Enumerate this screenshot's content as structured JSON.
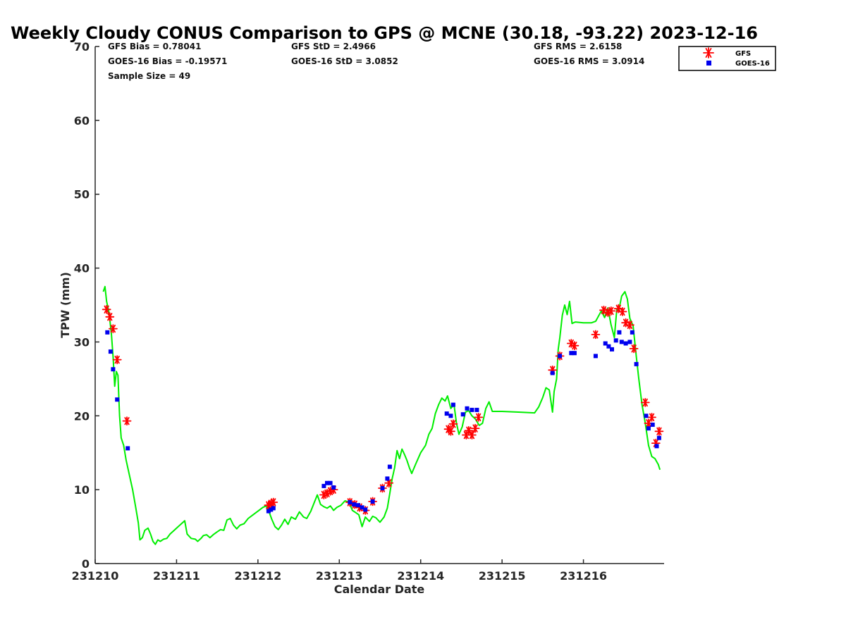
{
  "chart_data": {
    "type": "scatter",
    "title": "Weekly Cloudy CONUS Comparison to GPS @ MCNE (30.18, -93.22) 2023-12-16",
    "xlabel": "Calendar Date",
    "ylabel": "TPW (mm)",
    "xlim": [
      231210,
      231217
    ],
    "ylim": [
      0,
      70
    ],
    "x_ticks": [
      "231210",
      "231211",
      "231212",
      "231213",
      "231214",
      "231215",
      "231216"
    ],
    "y_ticks": [
      0,
      10,
      20,
      30,
      40,
      50,
      60,
      70
    ],
    "grid": false,
    "legend_position": "top-right",
    "stats": {
      "gfs_bias": "GFS Bias = 0.78041",
      "goes_bias": "GOES-16 Bias = -0.19571",
      "sample_size": "Sample Size = 49",
      "gfs_std": "GFS StD = 2.4966",
      "goes_std": "GOES-16 StD = 3.0852",
      "gfs_rms": "GFS RMS = 2.6158",
      "goes_rms": "GOES-16 RMS = 3.0914"
    },
    "series": [
      {
        "name": "GPS",
        "kind": "line",
        "color": "#00ee00",
        "points": [
          [
            231210.1,
            36.8
          ],
          [
            231210.12,
            37.5
          ],
          [
            231210.14,
            35.5
          ],
          [
            231210.17,
            34.0
          ],
          [
            231210.2,
            31.0
          ],
          [
            231210.22,
            28.0
          ],
          [
            231210.24,
            24.0
          ],
          [
            231210.26,
            26.0
          ],
          [
            231210.28,
            25.5
          ],
          [
            231210.3,
            20.0
          ],
          [
            231210.32,
            17.0
          ],
          [
            231210.35,
            16.0
          ],
          [
            231210.38,
            14.0
          ],
          [
            231210.42,
            12.0
          ],
          [
            231210.46,
            10.0
          ],
          [
            231210.5,
            7.5
          ],
          [
            231210.53,
            5.5
          ],
          [
            231210.55,
            3.2
          ],
          [
            231210.58,
            3.5
          ],
          [
            231210.61,
            4.5
          ],
          [
            231210.65,
            4.8
          ],
          [
            231210.68,
            4.0
          ],
          [
            231210.71,
            3.0
          ],
          [
            231210.74,
            2.6
          ],
          [
            231210.77,
            3.2
          ],
          [
            231210.8,
            3.0
          ],
          [
            231210.84,
            3.3
          ],
          [
            231210.88,
            3.4
          ],
          [
            231210.92,
            4.0
          ],
          [
            231211.0,
            4.8
          ],
          [
            231211.06,
            5.4
          ],
          [
            231211.1,
            5.8
          ],
          [
            231211.13,
            4.0
          ],
          [
            231211.18,
            3.4
          ],
          [
            231211.23,
            3.3
          ],
          [
            231211.26,
            3.0
          ],
          [
            231211.3,
            3.4
          ],
          [
            231211.33,
            3.8
          ],
          [
            231211.37,
            3.9
          ],
          [
            231211.41,
            3.5
          ],
          [
            231211.45,
            3.9
          ],
          [
            231211.5,
            4.3
          ],
          [
            231211.54,
            4.6
          ],
          [
            231211.58,
            4.5
          ],
          [
            231211.62,
            5.9
          ],
          [
            231211.66,
            6.1
          ],
          [
            231211.7,
            5.2
          ],
          [
            231211.74,
            4.7
          ],
          [
            231211.78,
            5.2
          ],
          [
            231211.83,
            5.4
          ],
          [
            231211.88,
            6.1
          ],
          [
            231211.94,
            6.6
          ],
          [
            231212.0,
            7.1
          ],
          [
            231212.06,
            7.6
          ],
          [
            231212.1,
            7.8
          ],
          [
            231212.13,
            7.2
          ],
          [
            231212.17,
            6.0
          ],
          [
            231212.21,
            5.0
          ],
          [
            231212.25,
            4.6
          ],
          [
            231212.29,
            5.2
          ],
          [
            231212.33,
            6.0
          ],
          [
            231212.37,
            5.3
          ],
          [
            231212.41,
            6.3
          ],
          [
            231212.46,
            6.0
          ],
          [
            231212.51,
            7.0
          ],
          [
            231212.56,
            6.3
          ],
          [
            231212.6,
            6.1
          ],
          [
            231212.65,
            7.1
          ],
          [
            231212.69,
            8.2
          ],
          [
            231212.73,
            9.3
          ],
          [
            231212.77,
            8.0
          ],
          [
            231212.81,
            7.7
          ],
          [
            231212.85,
            7.5
          ],
          [
            231212.89,
            7.8
          ],
          [
            231212.93,
            7.2
          ],
          [
            231212.97,
            7.6
          ],
          [
            231213.02,
            7.9
          ],
          [
            231213.07,
            8.5
          ],
          [
            231213.12,
            8.3
          ],
          [
            231213.16,
            7.2
          ],
          [
            231213.2,
            6.9
          ],
          [
            231213.24,
            6.6
          ],
          [
            231213.28,
            5.0
          ],
          [
            231213.32,
            6.3
          ],
          [
            231213.37,
            5.7
          ],
          [
            231213.41,
            6.4
          ],
          [
            231213.45,
            6.2
          ],
          [
            231213.5,
            5.6
          ],
          [
            231213.55,
            6.3
          ],
          [
            231213.59,
            7.5
          ],
          [
            231213.62,
            9.5
          ],
          [
            231213.65,
            11.5
          ],
          [
            231213.68,
            13.0
          ],
          [
            231213.71,
            15.3
          ],
          [
            231213.74,
            14.2
          ],
          [
            231213.77,
            15.5
          ],
          [
            231213.8,
            14.8
          ],
          [
            231213.83,
            14.0
          ],
          [
            231213.86,
            13.0
          ],
          [
            231213.89,
            12.2
          ],
          [
            231213.94,
            13.5
          ],
          [
            231214.0,
            15.0
          ],
          [
            231214.06,
            16.0
          ],
          [
            231214.1,
            17.5
          ],
          [
            231214.14,
            18.3
          ],
          [
            231214.18,
            20.3
          ],
          [
            231214.22,
            21.5
          ],
          [
            231214.26,
            22.4
          ],
          [
            231214.3,
            22.0
          ],
          [
            231214.33,
            22.7
          ],
          [
            231214.37,
            21.0
          ],
          [
            231214.41,
            21.5
          ],
          [
            231214.44,
            19.0
          ],
          [
            231214.47,
            17.5
          ],
          [
            231214.51,
            18.5
          ],
          [
            231214.55,
            20.5
          ],
          [
            231214.59,
            20.7
          ],
          [
            231214.63,
            20.0
          ],
          [
            231214.67,
            19.6
          ],
          [
            231214.72,
            18.7
          ],
          [
            231214.76,
            19.0
          ],
          [
            231214.8,
            21.0
          ],
          [
            231214.84,
            21.9
          ],
          [
            231214.88,
            20.6
          ],
          [
            231215.0,
            20.6
          ],
          [
            231215.2,
            20.5
          ],
          [
            231215.4,
            20.4
          ],
          [
            231215.45,
            21.2
          ],
          [
            231215.5,
            22.5
          ],
          [
            231215.54,
            23.8
          ],
          [
            231215.58,
            23.5
          ],
          [
            231215.62,
            20.5
          ],
          [
            231215.64,
            23.3
          ],
          [
            231215.67,
            25.0
          ],
          [
            231215.69,
            29.0
          ],
          [
            231215.71,
            30.6
          ],
          [
            231215.74,
            33.6
          ],
          [
            231215.77,
            35.0
          ],
          [
            231215.8,
            33.7
          ],
          [
            231215.83,
            35.5
          ],
          [
            231215.86,
            32.5
          ],
          [
            231215.9,
            32.7
          ],
          [
            231216.0,
            32.6
          ],
          [
            231216.1,
            32.6
          ],
          [
            231216.15,
            32.8
          ],
          [
            231216.19,
            33.6
          ],
          [
            231216.22,
            34.2
          ],
          [
            231216.26,
            33.3
          ],
          [
            231216.3,
            34.6
          ],
          [
            231216.34,
            32.3
          ],
          [
            231216.38,
            30.6
          ],
          [
            231216.41,
            34.4
          ],
          [
            231216.44,
            34.6
          ],
          [
            231216.47,
            36.2
          ],
          [
            231216.51,
            36.8
          ],
          [
            231216.54,
            35.8
          ],
          [
            231216.57,
            33.2
          ],
          [
            231216.61,
            32.2
          ],
          [
            231216.65,
            28.0
          ],
          [
            231216.68,
            25.0
          ],
          [
            231216.72,
            21.5
          ],
          [
            231216.76,
            19.0
          ],
          [
            231216.8,
            16.0
          ],
          [
            231216.84,
            14.5
          ],
          [
            231216.88,
            14.2
          ],
          [
            231216.92,
            13.4
          ],
          [
            231216.94,
            12.7
          ]
        ]
      },
      {
        "name": "GFS",
        "kind": "marker",
        "marker": "asterisk",
        "color": "#ff0000",
        "points": [
          [
            231210.14,
            34.4
          ],
          [
            231210.18,
            33.4
          ],
          [
            231210.22,
            31.8
          ],
          [
            231210.27,
            27.6
          ],
          [
            231210.39,
            19.3
          ],
          [
            231212.13,
            7.9
          ],
          [
            231212.16,
            8.1
          ],
          [
            231212.19,
            8.3
          ],
          [
            231212.81,
            9.3
          ],
          [
            231212.85,
            9.5
          ],
          [
            231212.89,
            9.8
          ],
          [
            231212.93,
            10.0
          ],
          [
            231213.13,
            8.3
          ],
          [
            231213.19,
            8.0
          ],
          [
            231213.25,
            7.6
          ],
          [
            231213.32,
            7.2
          ],
          [
            231213.41,
            8.4
          ],
          [
            231213.53,
            10.2
          ],
          [
            231213.61,
            10.9
          ],
          [
            231214.34,
            18.2
          ],
          [
            231214.37,
            17.9
          ],
          [
            231214.4,
            18.9
          ],
          [
            231214.56,
            17.4
          ],
          [
            231214.59,
            18.0
          ],
          [
            231214.63,
            17.4
          ],
          [
            231214.67,
            18.3
          ],
          [
            231214.71,
            19.8
          ],
          [
            231215.62,
            26.2
          ],
          [
            231215.71,
            28.1
          ],
          [
            231215.85,
            29.8
          ],
          [
            231215.89,
            29.5
          ],
          [
            231216.15,
            31.0
          ],
          [
            231216.25,
            34.3
          ],
          [
            231216.3,
            34.0
          ],
          [
            231216.34,
            34.2
          ],
          [
            231216.43,
            34.5
          ],
          [
            231216.48,
            34.1
          ],
          [
            231216.52,
            32.6
          ],
          [
            231216.57,
            32.3
          ],
          [
            231216.62,
            29.1
          ],
          [
            231216.76,
            21.8
          ],
          [
            231216.8,
            19.0
          ],
          [
            231216.84,
            19.8
          ],
          [
            231216.89,
            16.3
          ],
          [
            231216.93,
            17.9
          ]
        ]
      },
      {
        "name": "GOES-16",
        "kind": "marker",
        "marker": "square",
        "color": "#0000ee",
        "points": [
          [
            231210.15,
            31.3
          ],
          [
            231210.19,
            28.7
          ],
          [
            231210.22,
            26.3
          ],
          [
            231210.27,
            22.2
          ],
          [
            231210.4,
            15.6
          ],
          [
            231212.13,
            7.1
          ],
          [
            231212.16,
            7.3
          ],
          [
            231212.19,
            7.5
          ],
          [
            231212.81,
            10.5
          ],
          [
            231212.85,
            10.9
          ],
          [
            231212.89,
            10.9
          ],
          [
            231212.93,
            10.3
          ],
          [
            231213.13,
            8.3
          ],
          [
            231213.18,
            8.0
          ],
          [
            231213.23,
            7.9
          ],
          [
            231213.28,
            7.6
          ],
          [
            231213.32,
            7.3
          ],
          [
            231213.41,
            8.4
          ],
          [
            231213.53,
            10.2
          ],
          [
            231213.59,
            11.5
          ],
          [
            231213.62,
            13.1
          ],
          [
            231214.32,
            20.3
          ],
          [
            231214.37,
            20.0
          ],
          [
            231214.4,
            21.5
          ],
          [
            231214.52,
            20.2
          ],
          [
            231214.57,
            21.0
          ],
          [
            231214.63,
            20.8
          ],
          [
            231214.69,
            20.8
          ],
          [
            231215.62,
            25.8
          ],
          [
            231215.71,
            28.1
          ],
          [
            231215.85,
            28.5
          ],
          [
            231215.89,
            28.5
          ],
          [
            231216.15,
            28.1
          ],
          [
            231216.27,
            29.8
          ],
          [
            231216.31,
            29.4
          ],
          [
            231216.35,
            29.0
          ],
          [
            231216.4,
            30.2
          ],
          [
            231216.44,
            31.3
          ],
          [
            231216.47,
            30.0
          ],
          [
            231216.52,
            29.8
          ],
          [
            231216.57,
            30.0
          ],
          [
            231216.6,
            31.3
          ],
          [
            231216.65,
            27.0
          ],
          [
            231216.77,
            20.0
          ],
          [
            231216.8,
            18.3
          ],
          [
            231216.85,
            18.8
          ],
          [
            231216.9,
            15.9
          ],
          [
            231216.93,
            17.0
          ]
        ]
      }
    ]
  }
}
